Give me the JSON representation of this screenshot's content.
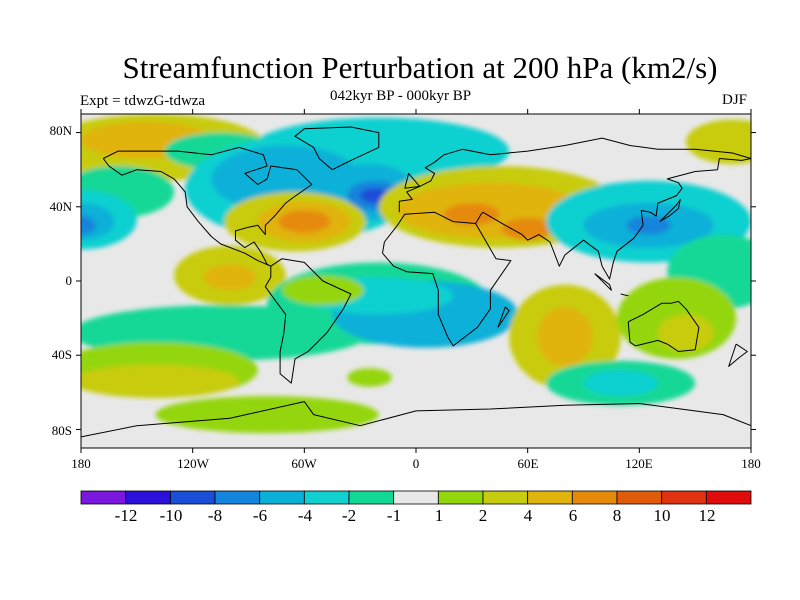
{
  "title": "Streamfunction Perturbation at 200 hPa (km2/s)",
  "subtitle": "042kyr BP - 000kyr BP",
  "left_label": "Expt = tdwzG-tdwza",
  "right_label": "DJF",
  "lat_labels": [
    "80N",
    "40N",
    "0",
    "40S",
    "80S"
  ],
  "lon_labels": [
    "180",
    "120W",
    "60W",
    "0",
    "60E",
    "120E",
    "180"
  ],
  "colorbar": {
    "colors": [
      "#7a18e0",
      "#2a10d8",
      "#1a4ed6",
      "#1484dc",
      "#0ab0d8",
      "#10d0d0",
      "#12d896",
      "#e8e8e8",
      "#94d60c",
      "#c8cc0e",
      "#e0b40c",
      "#e68a0a",
      "#e05c0a",
      "#e03210",
      "#e00c0c"
    ],
    "labels": [
      "-12",
      "-10",
      "-8",
      "-6",
      "-4",
      "-2",
      "-1",
      "1",
      "2",
      "4",
      "6",
      "8",
      "10",
      "12"
    ]
  },
  "map": {
    "background": "#e8e8e8",
    "blobs": [
      {
        "color": "#c8cc0e",
        "lon": -140,
        "lat": 72,
        "rx": 60,
        "ry": 18
      },
      {
        "color": "#e0b40c",
        "lon": -145,
        "lat": 76,
        "rx": 35,
        "ry": 10
      },
      {
        "color": "#10d0d0",
        "lon": -20,
        "lat": 70,
        "rx": 70,
        "ry": 18
      },
      {
        "color": "#12d896",
        "lon": -105,
        "lat": 70,
        "rx": 30,
        "ry": 10
      },
      {
        "color": "#12d896",
        "lon": -160,
        "lat": 48,
        "rx": 30,
        "ry": 14
      },
      {
        "color": "#10d0d0",
        "lon": -180,
        "lat": 33,
        "rx": 30,
        "ry": 16
      },
      {
        "color": "#0ab0d8",
        "lon": -180,
        "lat": 32,
        "rx": 18,
        "ry": 10
      },
      {
        "color": "#1484dc",
        "lon": -180,
        "lat": 30,
        "rx": 8,
        "ry": 5
      },
      {
        "color": "#10d0d0",
        "lon": -62,
        "lat": 50,
        "rx": 62,
        "ry": 28
      },
      {
        "color": "#0ab0d8",
        "lon": -70,
        "lat": 55,
        "rx": 40,
        "ry": 18
      },
      {
        "color": "#0ab0d8",
        "lon": -25,
        "lat": 48,
        "rx": 25,
        "ry": 15
      },
      {
        "color": "#1484dc",
        "lon": -22,
        "lat": 46,
        "rx": 15,
        "ry": 8
      },
      {
        "color": "#1a4ed6",
        "lon": -22,
        "lat": 46,
        "rx": 8,
        "ry": 4
      },
      {
        "color": "#c8cc0e",
        "lon": -65,
        "lat": 32,
        "rx": 38,
        "ry": 16
      },
      {
        "color": "#e0b40c",
        "lon": -60,
        "lat": 32,
        "rx": 25,
        "ry": 11
      },
      {
        "color": "#e68a0a",
        "lon": -60,
        "lat": 32,
        "rx": 14,
        "ry": 6
      },
      {
        "color": "#c8cc0e",
        "lon": 45,
        "lat": 40,
        "rx": 65,
        "ry": 22
      },
      {
        "color": "#e0b40c",
        "lon": 40,
        "lat": 38,
        "rx": 50,
        "ry": 15
      },
      {
        "color": "#e68a0a",
        "lon": 30,
        "lat": 36,
        "rx": 15,
        "ry": 6
      },
      {
        "color": "#e68a0a",
        "lon": 60,
        "lat": 28,
        "rx": 14,
        "ry": 6
      },
      {
        "color": "#c8cc0e",
        "lon": -100,
        "lat": 3,
        "rx": 30,
        "ry": 16
      },
      {
        "color": "#e0b40c",
        "lon": -100,
        "lat": 2,
        "rx": 14,
        "ry": 7
      },
      {
        "color": "#10d0d0",
        "lon": 125,
        "lat": 32,
        "rx": 55,
        "ry": 22
      },
      {
        "color": "#0ab0d8",
        "lon": 125,
        "lat": 30,
        "rx": 35,
        "ry": 12
      },
      {
        "color": "#1484dc",
        "lon": 125,
        "lat": 30,
        "rx": 12,
        "ry": 5
      },
      {
        "color": "#12d896",
        "lon": 165,
        "lat": 5,
        "rx": 30,
        "ry": 20
      },
      {
        "color": "#c8cc0e",
        "lon": 170,
        "lat": 75,
        "rx": 25,
        "ry": 12
      },
      {
        "color": "#12d896",
        "lon": -105,
        "lat": -28,
        "rx": 80,
        "ry": 15
      },
      {
        "color": "#12d896",
        "lon": -20,
        "lat": -12,
        "rx": 60,
        "ry": 22
      },
      {
        "color": "#0ab0d8",
        "lon": 5,
        "lat": -18,
        "rx": 50,
        "ry": 18
      },
      {
        "color": "#10d0d0",
        "lon": -20,
        "lat": -8,
        "rx": 40,
        "ry": 10
      },
      {
        "color": "#94d60c",
        "lon": -50,
        "lat": -5,
        "rx": 22,
        "ry": 8
      },
      {
        "color": "#94d60c",
        "lon": -140,
        "lat": -48,
        "rx": 55,
        "ry": 15
      },
      {
        "color": "#c8cc0e",
        "lon": -140,
        "lat": -54,
        "rx": 45,
        "ry": 9
      },
      {
        "color": "#94d60c",
        "lon": -80,
        "lat": -72,
        "rx": 60,
        "ry": 10
      },
      {
        "color": "#94d60c",
        "lon": -25,
        "lat": -52,
        "rx": 12,
        "ry": 5
      },
      {
        "color": "#c8cc0e",
        "lon": 80,
        "lat": -30,
        "rx": 30,
        "ry": 28
      },
      {
        "color": "#e0b40c",
        "lon": 80,
        "lat": -30,
        "rx": 15,
        "ry": 16
      },
      {
        "color": "#12d896",
        "lon": 110,
        "lat": -55,
        "rx": 40,
        "ry": 12
      },
      {
        "color": "#10d0d0",
        "lon": 110,
        "lat": -55,
        "rx": 20,
        "ry": 7
      },
      {
        "color": "#94d60c",
        "lon": 140,
        "lat": -20,
        "rx": 32,
        "ry": 22
      },
      {
        "color": "#c8cc0e",
        "lon": 145,
        "lat": -28,
        "rx": 15,
        "ry": 10
      }
    ],
    "coastlines": [
      [
        [
          -168,
          66
        ],
        [
          -160,
          70
        ],
        [
          -140,
          70
        ],
        [
          -128,
          70
        ],
        [
          -110,
          68
        ],
        [
          -95,
          72
        ],
        [
          -82,
          68
        ],
        [
          -80,
          62
        ],
        [
          -92,
          58
        ],
        [
          -85,
          52
        ],
        [
          -80,
          55
        ],
        [
          -78,
          62
        ],
        [
          -64,
          60
        ],
        [
          -56,
          52
        ],
        [
          -66,
          45
        ],
        [
          -70,
          42
        ],
        [
          -76,
          35
        ],
        [
          -81,
          30
        ],
        [
          -81,
          25
        ],
        [
          -85,
          30
        ],
        [
          -90,
          29
        ],
        [
          -97,
          27
        ],
        [
          -97,
          22
        ],
        [
          -92,
          18
        ],
        [
          -87,
          21
        ],
        [
          -83,
          15
        ],
        [
          -80,
          9
        ],
        [
          -78,
          8
        ],
        [
          -85,
          11
        ],
        [
          -92,
          15
        ],
        [
          -105,
          20
        ],
        [
          -110,
          24
        ],
        [
          -117,
          32
        ],
        [
          -123,
          40
        ],
        [
          -124,
          48
        ],
        [
          -130,
          55
        ],
        [
          -137,
          59
        ],
        [
          -150,
          60
        ],
        [
          -158,
          57
        ],
        [
          -165,
          62
        ],
        [
          -168,
          66
        ]
      ],
      [
        [
          -78,
          8
        ],
        [
          -72,
          12
        ],
        [
          -60,
          10
        ],
        [
          -50,
          0
        ],
        [
          -35,
          -7
        ],
        [
          -39,
          -15
        ],
        [
          -48,
          -28
        ],
        [
          -58,
          -38
        ],
        [
          -65,
          -42
        ],
        [
          -67,
          -55
        ],
        [
          -73,
          -50
        ],
        [
          -73,
          -38
        ],
        [
          -71,
          -28
        ],
        [
          -70,
          -18
        ],
        [
          -76,
          -10
        ],
        [
          -81,
          -3
        ],
        [
          -78,
          2
        ],
        [
          -78,
          8
        ]
      ],
      [
        [
          -45,
          60
        ],
        [
          -52,
          66
        ],
        [
          -55,
          72
        ],
        [
          -65,
          78
        ],
        [
          -60,
          82
        ],
        [
          -35,
          83
        ],
        [
          -20,
          80
        ],
        [
          -20,
          72
        ],
        [
          -35,
          65
        ],
        [
          -45,
          60
        ]
      ],
      [
        [
          -18,
          15
        ],
        [
          -17,
          21
        ],
        [
          -10,
          30
        ],
        [
          -6,
          36
        ],
        [
          10,
          37
        ],
        [
          20,
          32
        ],
        [
          32,
          31
        ],
        [
          43,
          12
        ],
        [
          51,
          11
        ],
        [
          40,
          -5
        ],
        [
          40,
          -15
        ],
        [
          33,
          -25
        ],
        [
          20,
          -35
        ],
        [
          17,
          -30
        ],
        [
          12,
          -18
        ],
        [
          12,
          -5
        ],
        [
          9,
          4
        ],
        [
          -5,
          5
        ],
        [
          -12,
          8
        ],
        [
          -18,
          15
        ]
      ],
      [
        [
          -9,
          37
        ],
        [
          -9,
          43
        ],
        [
          -2,
          44
        ],
        [
          -5,
          48
        ],
        [
          2,
          51
        ],
        [
          8,
          54
        ],
        [
          10,
          58
        ],
        [
          5,
          61
        ],
        [
          10,
          64
        ],
        [
          15,
          68
        ],
        [
          25,
          71
        ],
        [
          40,
          68
        ],
        [
          60,
          70
        ],
        [
          80,
          73
        ],
        [
          100,
          77
        ],
        [
          115,
          73
        ],
        [
          130,
          71
        ],
        [
          150,
          71
        ],
        [
          170,
          69
        ],
        [
          180,
          66
        ]
      ],
      [
        [
          32,
          31
        ],
        [
          35,
          36
        ],
        [
          36,
          37
        ],
        [
          48,
          30
        ],
        [
          57,
          25
        ],
        [
          60,
          22
        ],
        [
          66,
          25
        ],
        [
          72,
          21
        ],
        [
          77,
          8
        ],
        [
          80,
          14
        ],
        [
          90,
          22
        ],
        [
          98,
          16
        ],
        [
          100,
          8
        ],
        [
          104,
          1
        ],
        [
          106,
          10
        ],
        [
          108,
          16
        ],
        [
          117,
          23
        ],
        [
          122,
          30
        ],
        [
          121,
          38
        ],
        [
          126,
          37
        ],
        [
          129,
          35
        ],
        [
          130,
          42
        ],
        [
          140,
          46
        ],
        [
          143,
          50
        ],
        [
          141,
          53
        ],
        [
          135,
          55
        ],
        [
          150,
          59
        ],
        [
          162,
          60
        ],
        [
          163,
          66
        ],
        [
          175,
          65
        ],
        [
          180,
          66
        ]
      ],
      [
        [
          114,
          -22
        ],
        [
          122,
          -18
        ],
        [
          132,
          -12
        ],
        [
          137,
          -12
        ],
        [
          141,
          -11
        ],
        [
          145,
          -15
        ],
        [
          152,
          -25
        ],
        [
          150,
          -37
        ],
        [
          141,
          -38
        ],
        [
          135,
          -34
        ],
        [
          130,
          -32
        ],
        [
          118,
          -35
        ],
        [
          115,
          -33
        ],
        [
          114,
          -22
        ]
      ],
      [
        [
          -180,
          -84
        ],
        [
          -150,
          -78
        ],
        [
          -100,
          -74
        ],
        [
          -60,
          -65
        ],
        [
          -55,
          -72
        ],
        [
          -30,
          -78
        ],
        [
          0,
          -70
        ],
        [
          40,
          -69
        ],
        [
          80,
          -67
        ],
        [
          120,
          -66
        ],
        [
          165,
          -72
        ],
        [
          180,
          -78
        ]
      ],
      [
        [
          -6,
          50
        ],
        [
          2,
          51
        ],
        [
          -4,
          58
        ],
        [
          -6,
          50
        ]
      ],
      [
        [
          131,
          32
        ],
        [
          136,
          35
        ],
        [
          141,
          39
        ],
        [
          142,
          44
        ],
        [
          140,
          41
        ],
        [
          133,
          34
        ],
        [
          131,
          32
        ]
      ],
      [
        [
          172,
          -34
        ],
        [
          178,
          -38
        ],
        [
          174,
          -41
        ],
        [
          168,
          -46
        ],
        [
          172,
          -34
        ]
      ],
      [
        [
          44,
          -25
        ],
        [
          48,
          -14
        ],
        [
          50,
          -16
        ],
        [
          44,
          -25
        ]
      ],
      [
        [
          96,
          4
        ],
        [
          105,
          -5
        ],
        [
          104,
          -2
        ],
        [
          96,
          4
        ]
      ],
      [
        [
          110,
          -7
        ],
        [
          114,
          -8
        ],
        [
          110,
          -7
        ]
      ]
    ]
  }
}
